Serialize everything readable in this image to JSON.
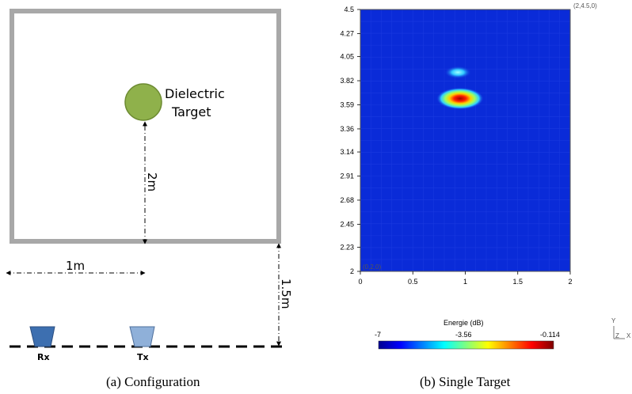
{
  "configuration": {
    "target_label_line1": "Dielectric",
    "target_label_line2": "Target",
    "target_distance_label": "2m",
    "spacing_label": "1m",
    "height_label": "1.5m",
    "rx_label": "Rx",
    "tx_label": "Tx",
    "caption": "(a)  Configuration",
    "colors": {
      "wall": "#a8a8a8",
      "target": "#8fb14b",
      "rx": "#3d6fb0",
      "tx": "#8fb0d9"
    }
  },
  "chart_data": {
    "type": "heatmap",
    "caption": "(b)  Single Target",
    "corner_label_top": "(2,4.5,0)",
    "corner_label_bottom": "(0,2,0)",
    "x_ticks": [
      "0",
      "0.5",
      "1",
      "1.5",
      "2"
    ],
    "y_ticks": [
      "2",
      "2.23",
      "2.45",
      "2.68",
      "2.91",
      "3.14",
      "3.36",
      "3.59",
      "3.82",
      "4.05",
      "4.27",
      "4.5"
    ],
    "xlim": [
      0,
      2
    ],
    "ylim": [
      2,
      4.5
    ],
    "background_value": -7,
    "hotspots": [
      {
        "x": 0.95,
        "y": 3.65,
        "value": -0.114
      },
      {
        "x": 0.93,
        "y": 3.9,
        "value": -4.5
      }
    ],
    "colorbar": {
      "title": "Energie (dB)",
      "min_label": "-7",
      "mid_label": "-3.56",
      "max_label": "-0.114",
      "min": -7,
      "max": -0.114
    },
    "axes_triad": {
      "y": "Y",
      "z": "Z",
      "x": "X"
    }
  }
}
